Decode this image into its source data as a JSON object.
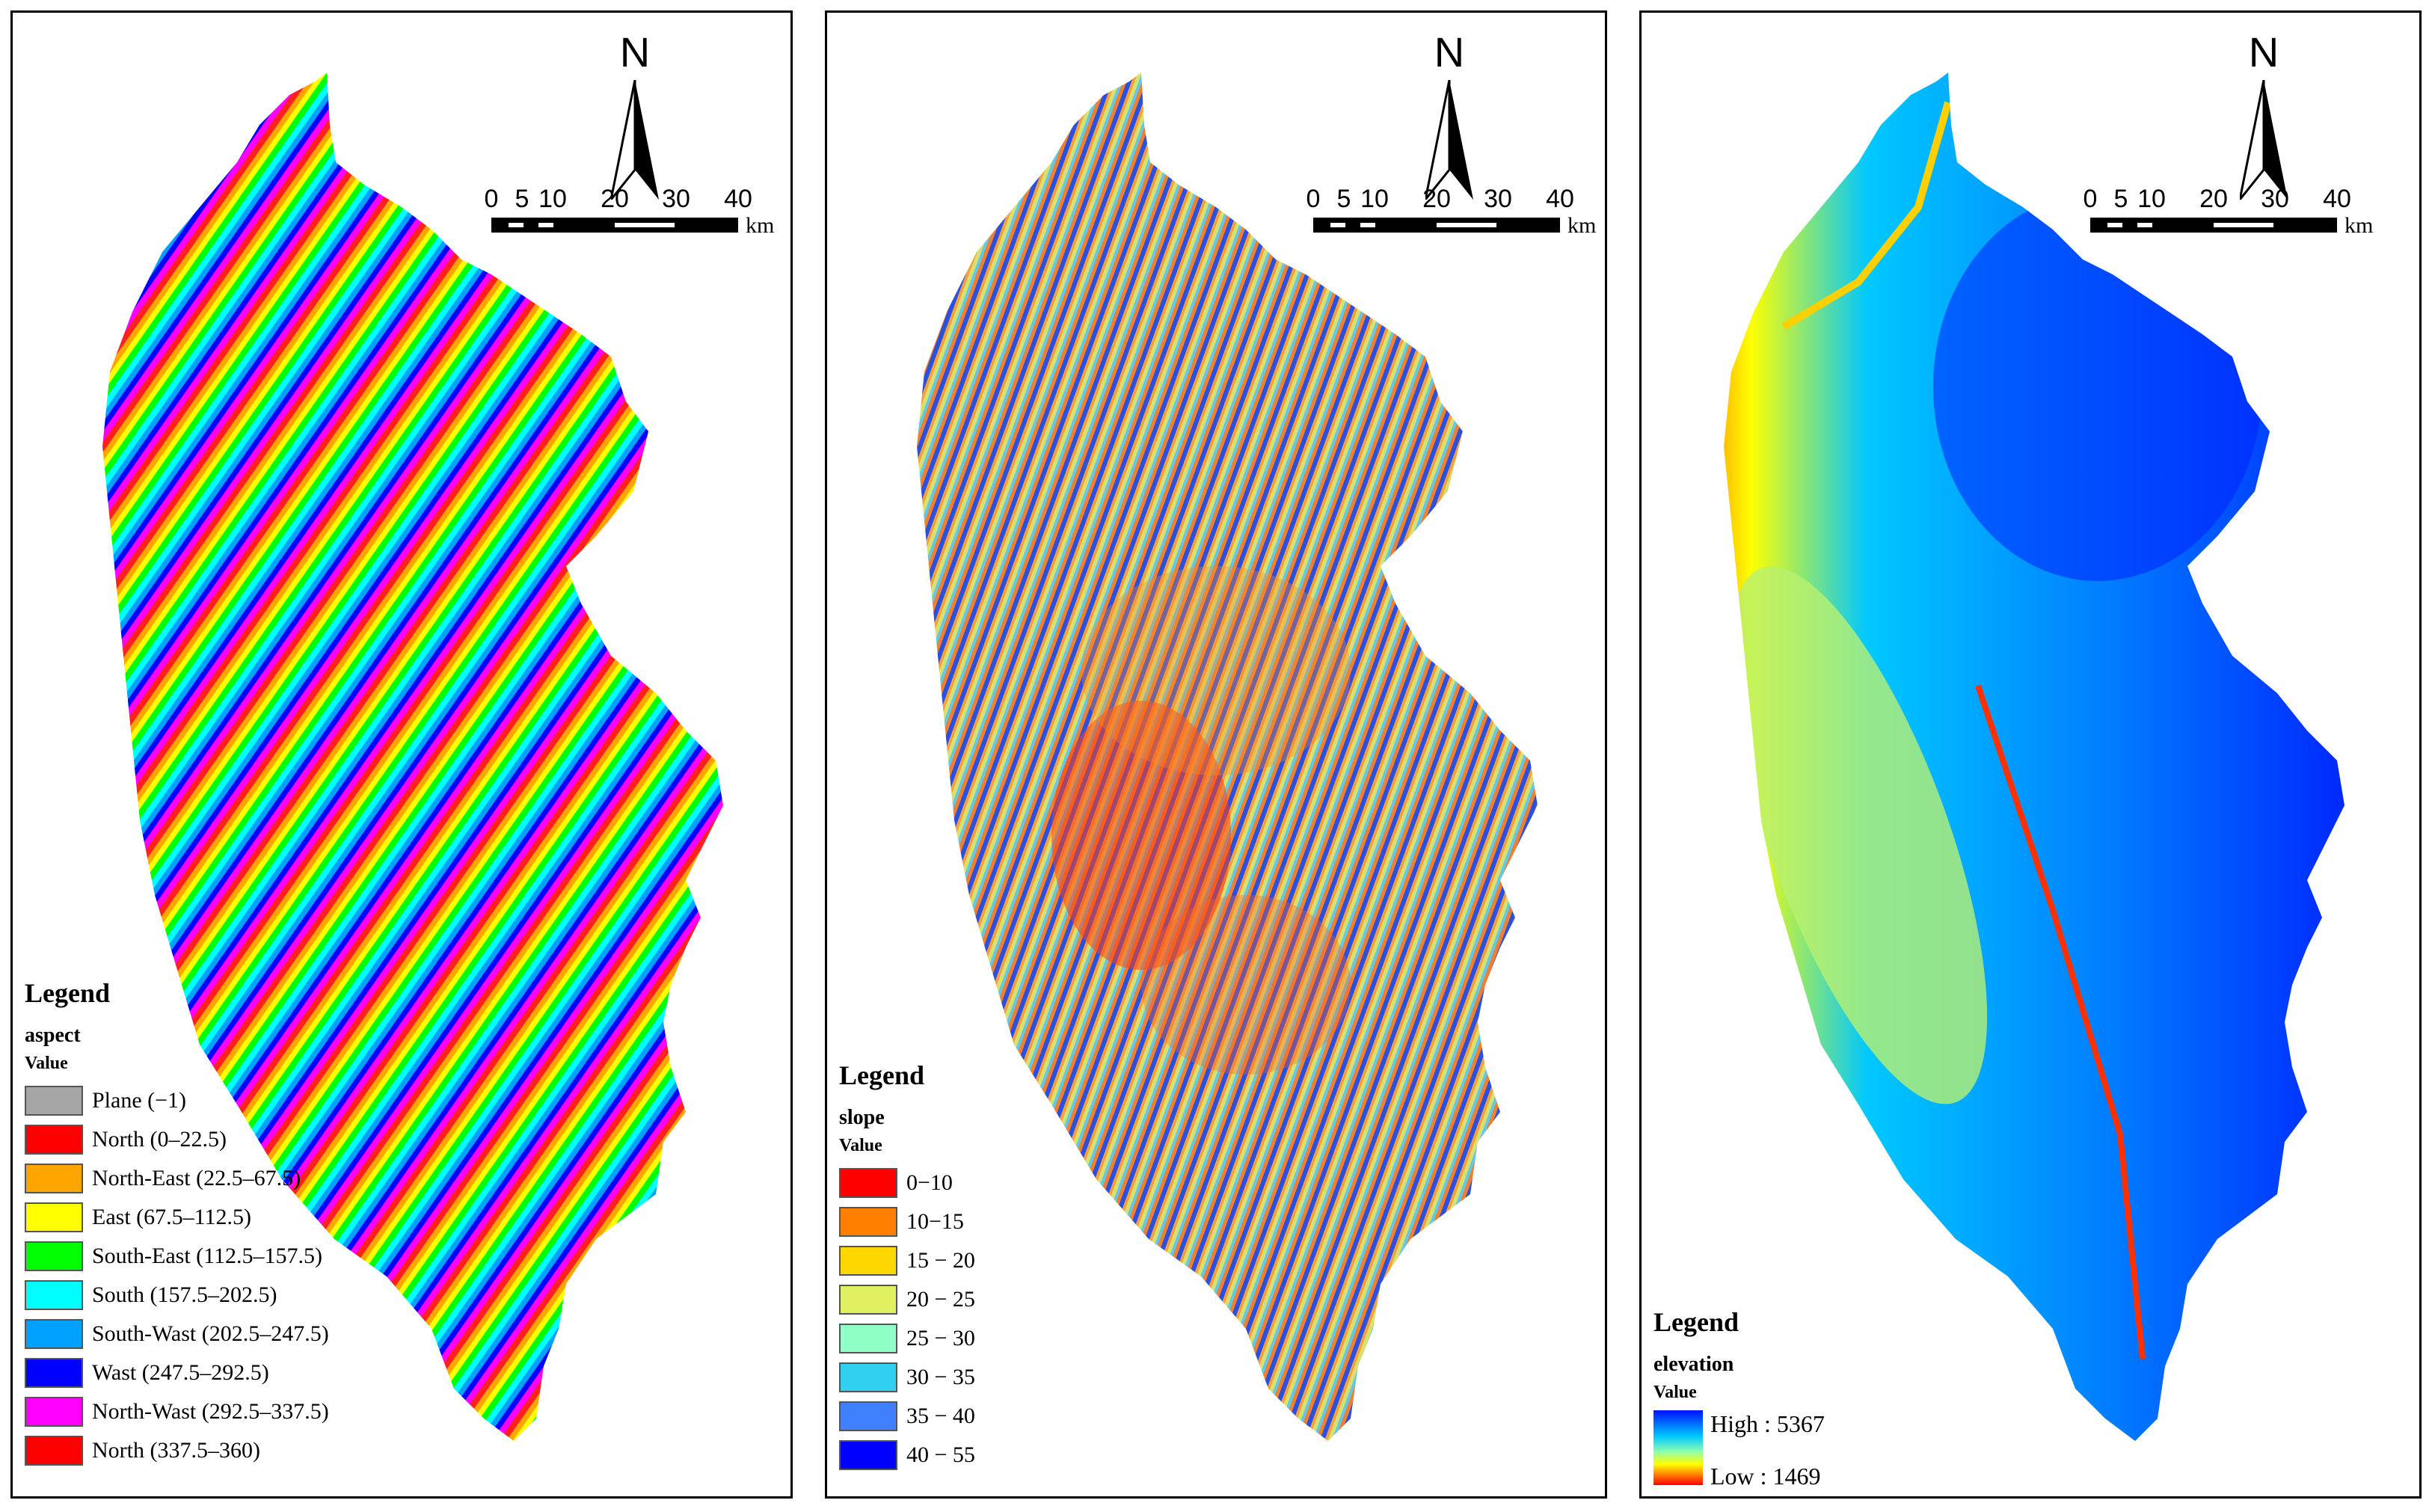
{
  "panels": [
    {
      "legend": {
        "title": "Legend",
        "field": "aspect",
        "value_label": "Value",
        "items": [
          {
            "label": "Plane (−1)",
            "color": "#a6a6a6"
          },
          {
            "label": "North (0–22.5)",
            "color": "#ff0000"
          },
          {
            "label": "North-East (22.5–67.5)",
            "color": "#ffa500"
          },
          {
            "label": "East (67.5–112.5)",
            "color": "#ffff00"
          },
          {
            "label": "South-East (112.5–157.5)",
            "color": "#00ff00"
          },
          {
            "label": "South (157.5–202.5)",
            "color": "#00ffff"
          },
          {
            "label": "South-Wast (202.5–247.5)",
            "color": "#00a0ff"
          },
          {
            "label": "Wast (247.5–292.5)",
            "color": "#0000ff"
          },
          {
            "label": "North-Wast (292.5–337.5)",
            "color": "#ff00ff"
          },
          {
            "label": "North (337.5–360)",
            "color": "#ff0000"
          }
        ]
      }
    },
    {
      "legend": {
        "title": "Legend",
        "field": "slope",
        "value_label": "Value",
        "items": [
          {
            "label": "0−10",
            "color": "#ff0000"
          },
          {
            "label": "10−15",
            "color": "#ff8000"
          },
          {
            "label": "15 − 20",
            "color": "#ffd700"
          },
          {
            "label": "20 − 25",
            "color": "#e0f060"
          },
          {
            "label": "25 − 30",
            "color": "#90ffc8"
          },
          {
            "label": "30 − 35",
            "color": "#30d0f0"
          },
          {
            "label": "35 − 40",
            "color": "#4080ff"
          },
          {
            "label": "40 − 55",
            "color": "#0000ff"
          }
        ]
      }
    },
    {
      "legend": {
        "title": "Legend",
        "field": "elevation",
        "value_label": "Value",
        "high_label": "High :  5367",
        "low_label": "Low  :  1469"
      }
    }
  ],
  "north_label": "N",
  "scale_ticks": [
    "0",
    "5",
    "10",
    "20",
    "30",
    "40"
  ],
  "scale_unit": "km"
}
